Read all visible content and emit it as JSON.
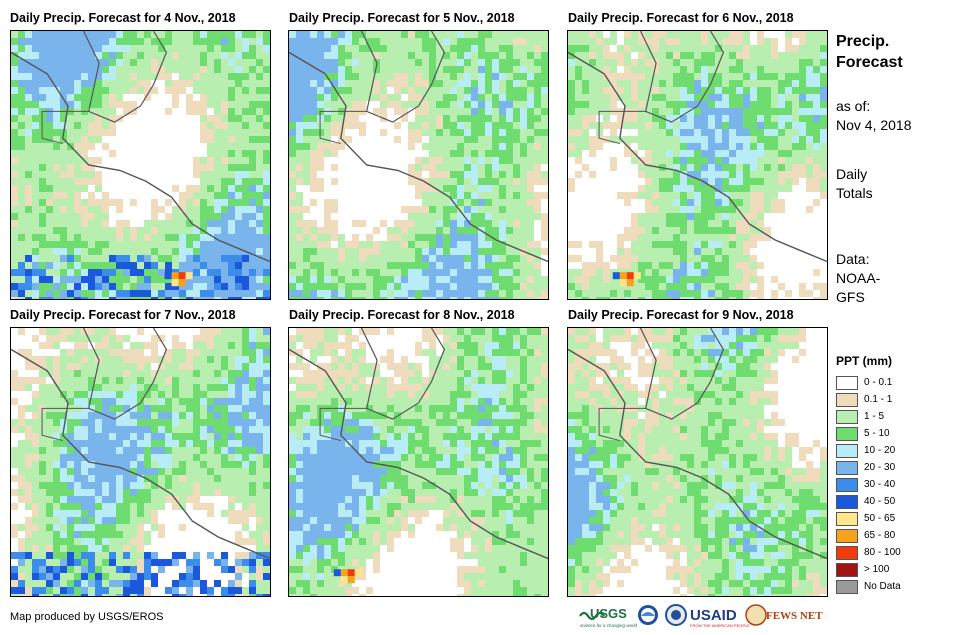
{
  "panels": [
    {
      "title": "Daily Precip. Forecast for 4 Nov., 2018"
    },
    {
      "title": "Daily Precip. Forecast for 5 Nov., 2018"
    },
    {
      "title": "Daily Precip. Forecast for 6 Nov., 2018"
    },
    {
      "title": "Daily Precip. Forecast for 7 Nov., 2018"
    },
    {
      "title": "Daily Precip. Forecast for 8 Nov., 2018"
    },
    {
      "title": "Daily Precip. Forecast for 9 Nov., 2018"
    }
  ],
  "side": {
    "title_line1": "Precip.",
    "title_line2": "Forecast",
    "asof_label": "as of:",
    "asof_date": "Nov 4, 2018",
    "daily_line1": "Daily",
    "daily_line2": "Totals",
    "data_label": "Data:",
    "data_line1": "NOAA-",
    "data_line2": "GFS"
  },
  "legend": {
    "title": "PPT (mm)",
    "items": [
      {
        "label": "0 - 0.1",
        "color": "#ffffff"
      },
      {
        "label": "0.1 - 1",
        "color": "#efdcbc"
      },
      {
        "label": "1 - 5",
        "color": "#b8eeb0"
      },
      {
        "label": "5 - 10",
        "color": "#6edc6e"
      },
      {
        "label": "10 - 20",
        "color": "#b8ecf6"
      },
      {
        "label": "20 - 30",
        "color": "#7ab4ec"
      },
      {
        "label": "30 - 40",
        "color": "#3c8cec"
      },
      {
        "label": "40 - 50",
        "color": "#1c58dc"
      },
      {
        "label": "50 - 65",
        "color": "#ffe68c"
      },
      {
        "label": "65 - 80",
        "color": "#f7a21c"
      },
      {
        "label": "80 - 100",
        "color": "#f23a0a"
      },
      {
        "label": "> 100",
        "color": "#a01414"
      },
      {
        "label": "No Data",
        "color": "#9a9a9a"
      }
    ]
  },
  "credit": "Map produced by USGS/EROS",
  "logos": {
    "usgs": "USGS",
    "usgs_tagline": "science for a changing world",
    "usaid": "USAID",
    "usaid_tagline": "FROM THE AMERICAN PEOPLE",
    "fewsnet": "FEWS NET"
  }
}
